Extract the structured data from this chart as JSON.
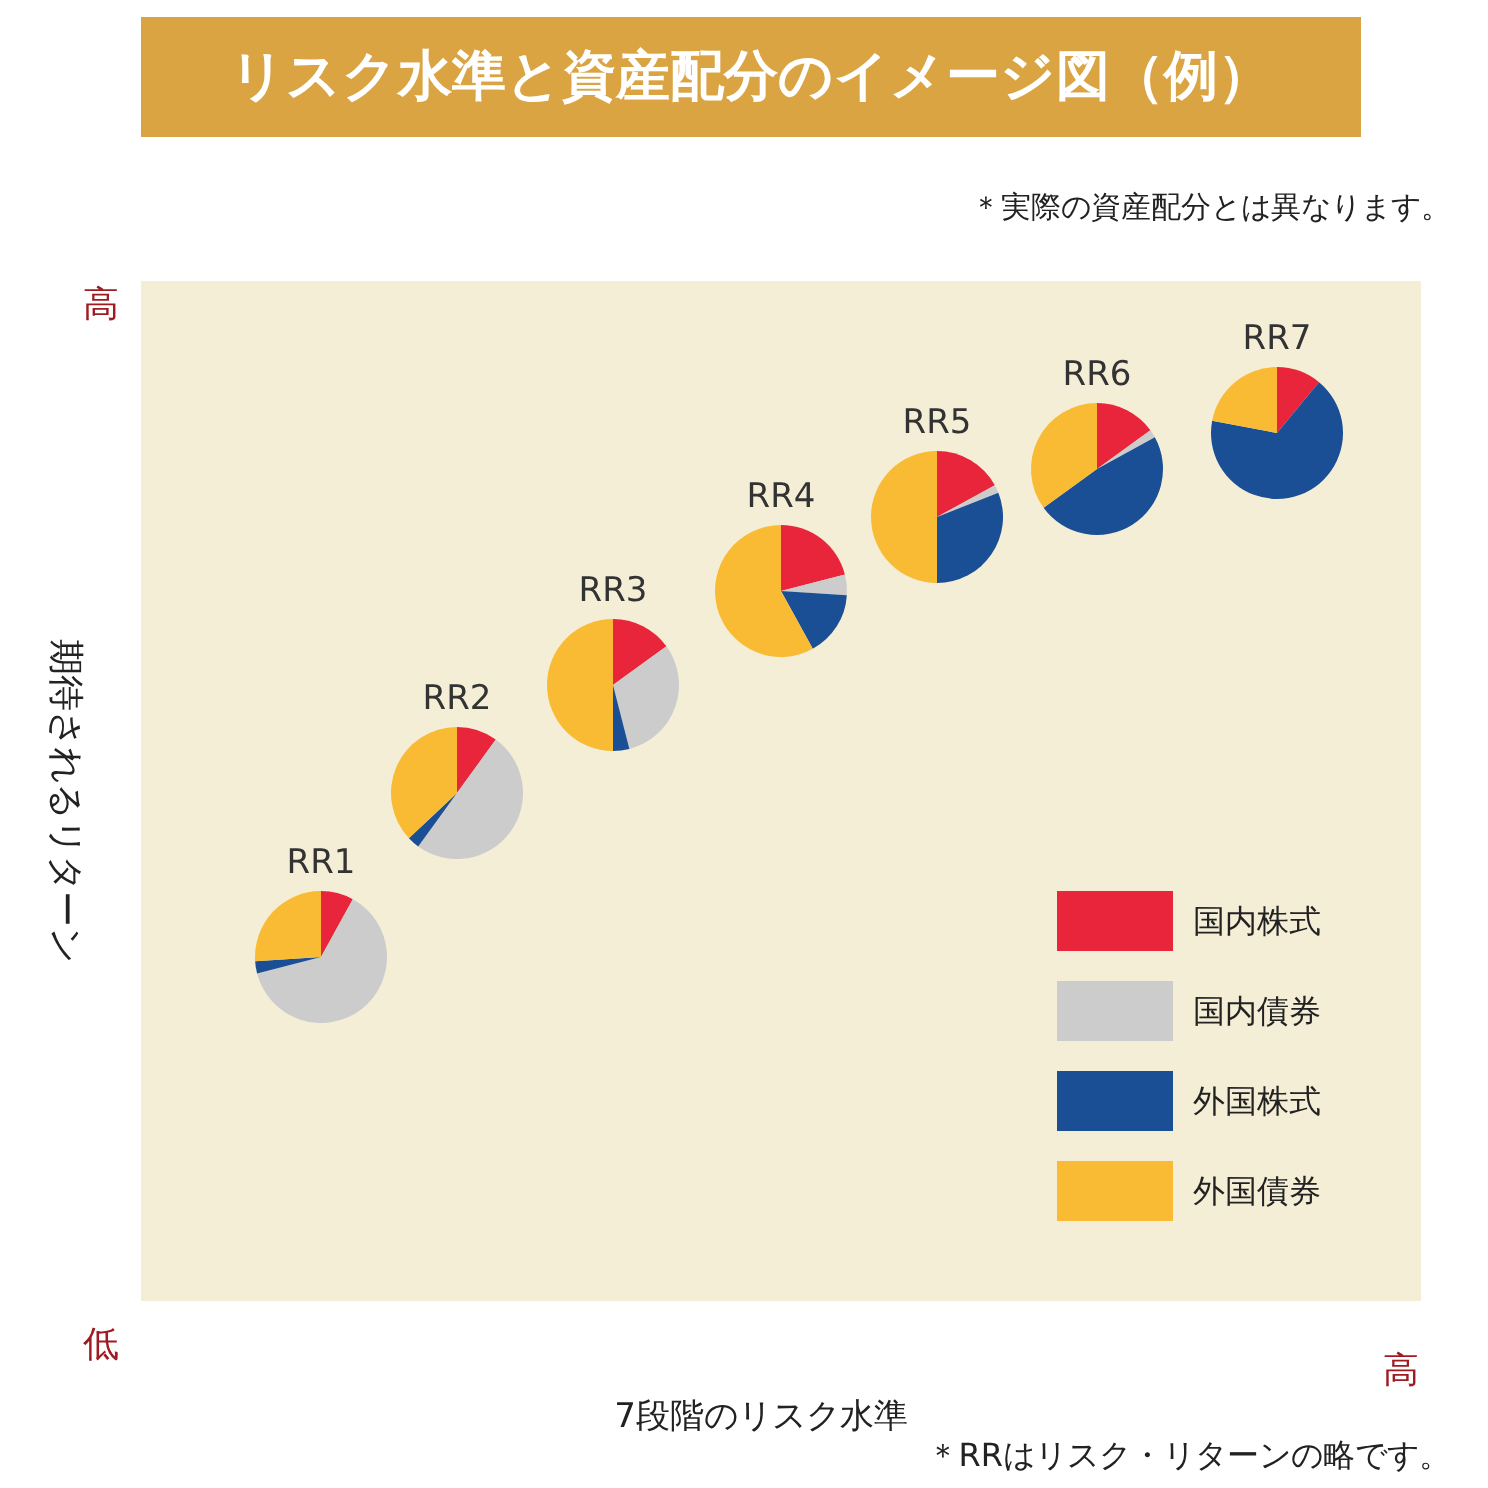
{
  "chart_data": [
    {
      "type": "pie",
      "title": "RR1",
      "categories": [
        "国内株式",
        "国内債券",
        "外国株式",
        "外国債券"
      ],
      "values": [
        8,
        63,
        3,
        26
      ],
      "colors": [
        "#e8253a",
        "#cccccc",
        "#1a4f96",
        "#f9bb34"
      ],
      "legend": "bottom right",
      "annotations": [
        "リスク水準と資産配分のイメージ図（例）",
        "＊実際の資産配分とは異なります。",
        "高",
        "低",
        "高",
        "＊RRはリスク・リターンの略です。"
      ],
      "xlabel": "7段階のリスク水準",
      "ylabel": "期待されるリターン"
    },
    {
      "type": "pie",
      "title": "RR2",
      "categories": [
        null,
        null,
        null,
        null
      ],
      "values": [
        10,
        50,
        3,
        37
      ],
      "colors": [
        "#e8253a",
        "#cccccc",
        "#1a4f96",
        "#f9bb34"
      ]
    },
    {
      "type": "pie",
      "title": "RR3",
      "categories": [
        null,
        null,
        null,
        null
      ],
      "values": [
        15,
        31,
        4,
        50
      ],
      "colors": [
        "#e8253a",
        "#cccccc",
        "#1a4f96",
        "#f9bb34"
      ]
    },
    {
      "type": "pie",
      "title": "RR4",
      "categories": [
        null,
        null,
        null,
        null
      ],
      "values": [
        21,
        5,
        16,
        58
      ],
      "colors": [
        "#e8253a",
        "#cccccc",
        "#1a4f96",
        "#f9bb34"
      ]
    },
    {
      "type": "pie",
      "title": "RR5",
      "categories": [
        null,
        null,
        null,
        null
      ],
      "values": [
        17,
        2,
        31,
        50
      ],
      "colors": [
        "#e8253a",
        "#cccccc",
        "#1a4f96",
        "#f9bb34"
      ]
    },
    {
      "type": "pie",
      "title": "RR6",
      "categories": [
        null,
        null,
        null,
        null
      ],
      "values": [
        15,
        2,
        48,
        35
      ],
      "colors": [
        "#e8253a",
        "#cccccc",
        "#1a4f96",
        "#f9bb34"
      ]
    },
    {
      "type": "pie",
      "title": "RR7",
      "categories": [
        null,
        null,
        null,
        null
      ],
      "values": [
        11,
        0,
        67,
        22
      ],
      "colors": [
        "#e8253a",
        "#cccccc",
        "#1a4f96",
        "#f9bb34"
      ]
    }
  ]
}
